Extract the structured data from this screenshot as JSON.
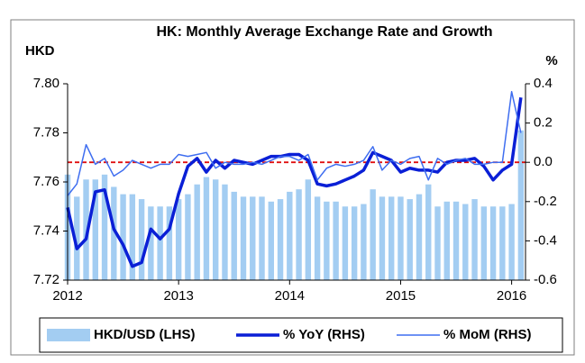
{
  "chart_data": {
    "type": "bar_line",
    "title": "HK: Monthly Average Exchange Rate and Growth",
    "y_label": "HKD",
    "y2_label": "%",
    "categories": [
      "2012",
      null,
      null,
      null,
      null,
      null,
      null,
      null,
      null,
      null,
      null,
      null,
      "2013",
      null,
      null,
      null,
      null,
      null,
      null,
      null,
      null,
      null,
      null,
      null,
      "2014",
      null,
      null,
      null,
      null,
      null,
      null,
      null,
      null,
      null,
      null,
      null,
      "2015",
      null,
      null,
      null,
      null,
      null,
      null,
      null,
      null,
      null,
      null,
      null,
      "2016",
      null
    ],
    "series": [
      {
        "name": "HKD/USD (LHS)",
        "type": "bar",
        "color": "#a3cdf2",
        "axis": "y",
        "values": [
          7.763,
          7.754,
          7.761,
          7.761,
          7.763,
          7.758,
          7.755,
          7.755,
          7.753,
          7.75,
          7.75,
          7.75,
          7.753,
          7.755,
          7.759,
          7.762,
          7.761,
          7.759,
          7.756,
          7.754,
          7.754,
          7.754,
          7.752,
          7.753,
          7.756,
          7.757,
          7.761,
          7.754,
          7.752,
          7.752,
          7.75,
          7.75,
          7.751,
          7.757,
          7.754,
          7.754,
          7.754,
          7.753,
          7.755,
          7.759,
          7.75,
          7.752,
          7.752,
          7.751,
          7.753,
          7.75,
          7.75,
          7.75,
          7.751,
          7.781
        ]
      },
      {
        "name": "% YoY (RHS)",
        "type": "line",
        "color": "#0a1fd6",
        "width": 3.5,
        "axis": "y2",
        "values": [
          -0.23,
          -0.44,
          -0.39,
          -0.15,
          -0.14,
          -0.34,
          -0.42,
          -0.53,
          -0.51,
          -0.34,
          -0.39,
          -0.34,
          -0.16,
          -0.02,
          0.02,
          -0.05,
          0.01,
          -0.03,
          0.01,
          0,
          -0.01,
          0.01,
          0.03,
          0.03,
          0.04,
          0.04,
          0.01,
          -0.11,
          -0.12,
          -0.11,
          -0.09,
          -0.07,
          -0.04,
          0.05,
          0.03,
          0.01,
          -0.05,
          -0.03,
          -0.04,
          -0.04,
          -0.05,
          0,
          0.01,
          0.01,
          0.02,
          -0.02,
          -0.09,
          -0.04,
          -0.01,
          0.33
        ]
      },
      {
        "name": "% MoM (RHS)",
        "type": "line",
        "color": "#3f6ef0",
        "width": 1.5,
        "axis": "y2",
        "values": [
          -0.17,
          -0.11,
          0.09,
          -0.01,
          0.02,
          -0.07,
          -0.04,
          0.01,
          -0.01,
          -0.03,
          -0.01,
          -0.01,
          0.04,
          0.03,
          0.04,
          0.05,
          -0.03,
          0,
          -0.01,
          -0.01,
          0,
          -0.01,
          0.01,
          0.03,
          0.03,
          0.01,
          0.04,
          -0.09,
          -0.03,
          -0.01,
          -0.02,
          -0.01,
          0.01,
          0.08,
          -0.04,
          0.01,
          -0.01,
          0.02,
          0.03,
          -0.09,
          0.02,
          -0.01,
          0.01,
          0.02,
          -0.01,
          -0.01,
          0,
          0,
          0.36,
          0.15
        ]
      }
    ],
    "ylim": [
      7.72,
      7.8
    ],
    "yticks": [
      7.72,
      7.74,
      7.76,
      7.78,
      {
        "value": 7.8,
        "label": "7.80"
      }
    ],
    "y2lim": [
      -0.6,
      0.4
    ],
    "y2ticks": [
      -0.6,
      -0.4,
      -0.2,
      {
        "value": 0,
        "label": "0.0"
      },
      0.2,
      0.4
    ],
    "reference_line": {
      "axis": "y2",
      "value": 0,
      "color": "#e01010"
    },
    "legend": "bottom"
  }
}
